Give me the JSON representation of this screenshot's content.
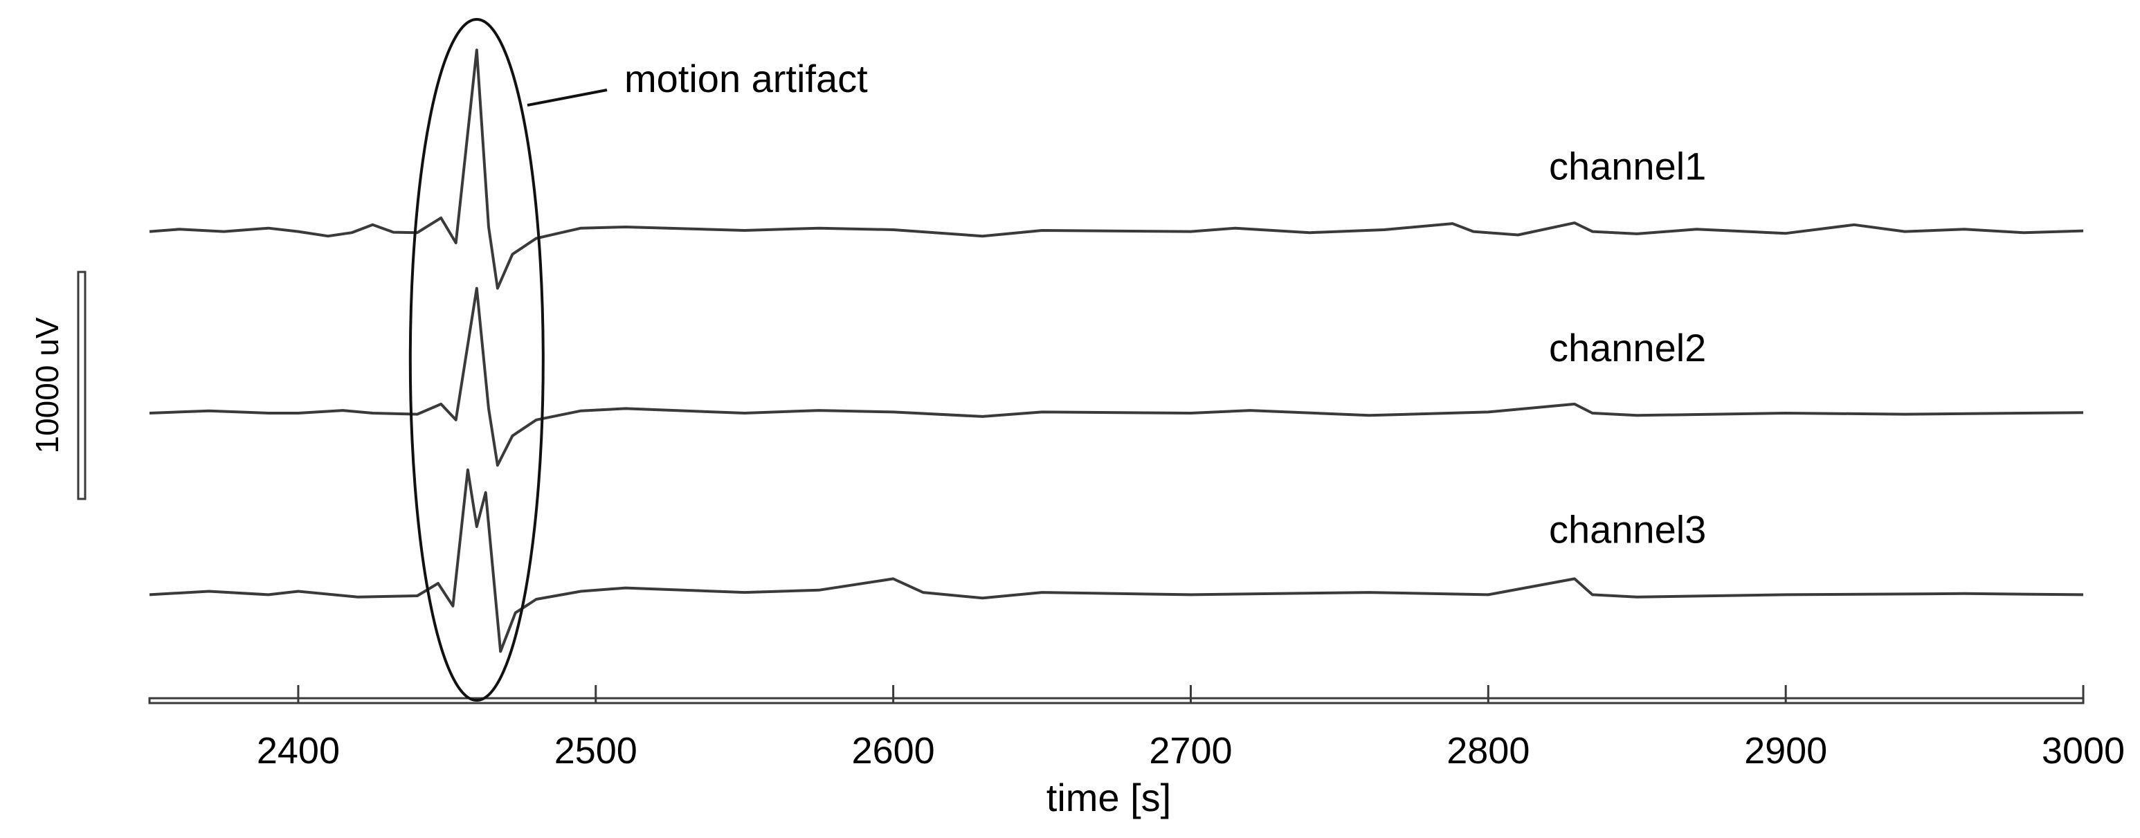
{
  "chart_data": {
    "type": "line",
    "title": "",
    "xlabel": "time [s]",
    "ylabel": "",
    "xlim": [
      2350,
      3000
    ],
    "xticks": [
      2400,
      2500,
      2600,
      2700,
      2800,
      2900,
      3000
    ],
    "grid": false,
    "legend": "none",
    "scale_bar": {
      "label": "10000 uV",
      "value_uv": 10000
    },
    "annotation": {
      "text": "motion artifact",
      "x_center": 2460,
      "x_range": [
        2440,
        2480
      ]
    },
    "series": [
      {
        "name": "channel1",
        "baseline_uv": 8000,
        "points": [
          [
            2350,
            0
          ],
          [
            2360,
            100
          ],
          [
            2375,
            0
          ],
          [
            2390,
            150
          ],
          [
            2400,
            0
          ],
          [
            2410,
            -200
          ],
          [
            2418,
            -50
          ],
          [
            2425,
            300
          ],
          [
            2432,
            -30
          ],
          [
            2440,
            -50
          ],
          [
            2448,
            600
          ],
          [
            2453,
            -500
          ],
          [
            2460,
            8000
          ],
          [
            2464,
            200
          ],
          [
            2467,
            -2500
          ],
          [
            2472,
            -1000
          ],
          [
            2480,
            -300
          ],
          [
            2495,
            150
          ],
          [
            2510,
            200
          ],
          [
            2550,
            50
          ],
          [
            2575,
            150
          ],
          [
            2600,
            80
          ],
          [
            2630,
            -200
          ],
          [
            2650,
            50
          ],
          [
            2700,
            0
          ],
          [
            2715,
            150
          ],
          [
            2740,
            -50
          ],
          [
            2765,
            80
          ],
          [
            2788,
            350
          ],
          [
            2795,
            0
          ],
          [
            2810,
            -150
          ],
          [
            2829,
            380
          ],
          [
            2835,
            0
          ],
          [
            2850,
            -100
          ],
          [
            2870,
            100
          ],
          [
            2900,
            -80
          ],
          [
            2923,
            300
          ],
          [
            2940,
            0
          ],
          [
            2960,
            100
          ],
          [
            2980,
            -50
          ],
          [
            3000,
            30
          ]
        ]
      },
      {
        "name": "channel2",
        "baseline_uv": 0,
        "points": [
          [
            2350,
            0
          ],
          [
            2370,
            100
          ],
          [
            2390,
            0
          ],
          [
            2400,
            0
          ],
          [
            2415,
            120
          ],
          [
            2425,
            0
          ],
          [
            2440,
            -50
          ],
          [
            2448,
            400
          ],
          [
            2453,
            -300
          ],
          [
            2460,
            5500
          ],
          [
            2464,
            200
          ],
          [
            2467,
            -2300
          ],
          [
            2472,
            -1000
          ],
          [
            2480,
            -300
          ],
          [
            2495,
            100
          ],
          [
            2510,
            200
          ],
          [
            2550,
            0
          ],
          [
            2575,
            120
          ],
          [
            2600,
            50
          ],
          [
            2630,
            -150
          ],
          [
            2650,
            50
          ],
          [
            2700,
            0
          ],
          [
            2720,
            120
          ],
          [
            2760,
            -100
          ],
          [
            2800,
            50
          ],
          [
            2829,
            400
          ],
          [
            2835,
            0
          ],
          [
            2850,
            -100
          ],
          [
            2900,
            0
          ],
          [
            2940,
            -50
          ],
          [
            2980,
            0
          ],
          [
            3000,
            20
          ]
        ]
      },
      {
        "name": "channel3",
        "baseline_uv": -8000,
        "points": [
          [
            2350,
            0
          ],
          [
            2370,
            150
          ],
          [
            2390,
            0
          ],
          [
            2400,
            150
          ],
          [
            2420,
            -100
          ],
          [
            2440,
            -50
          ],
          [
            2447,
            500
          ],
          [
            2452,
            -500
          ],
          [
            2457,
            5500
          ],
          [
            2460,
            3000
          ],
          [
            2463,
            4500
          ],
          [
            2468,
            -2500
          ],
          [
            2473,
            -800
          ],
          [
            2480,
            -200
          ],
          [
            2495,
            150
          ],
          [
            2510,
            300
          ],
          [
            2550,
            100
          ],
          [
            2575,
            200
          ],
          [
            2600,
            700
          ],
          [
            2610,
            100
          ],
          [
            2630,
            -150
          ],
          [
            2650,
            100
          ],
          [
            2700,
            0
          ],
          [
            2760,
            100
          ],
          [
            2800,
            0
          ],
          [
            2829,
            700
          ],
          [
            2835,
            0
          ],
          [
            2850,
            -100
          ],
          [
            2900,
            0
          ],
          [
            2960,
            50
          ],
          [
            3000,
            0
          ]
        ]
      }
    ]
  }
}
